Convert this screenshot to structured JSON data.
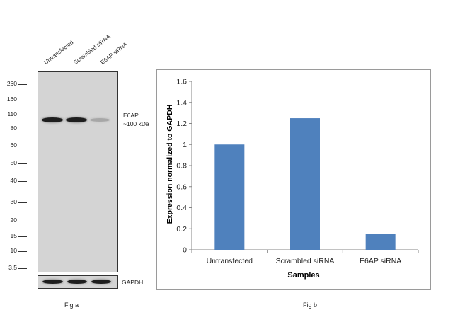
{
  "fig_a": {
    "lanes": [
      "Untransfected",
      "Scrambled siRNA",
      "E6AP siRNA"
    ],
    "markers": [
      "260",
      "160",
      "110",
      "80",
      "60",
      "50",
      "40",
      "30",
      "20",
      "15",
      "10",
      "3.5"
    ],
    "target_label": "E6AP",
    "target_size": "~100 kDa",
    "loading_label": "GAPDH",
    "caption": "Fig a",
    "band_intensities": [
      1.0,
      1.0,
      0.25
    ],
    "loading_intensities": [
      1.0,
      1.0,
      1.0
    ]
  },
  "fig_b": {
    "caption": "Fig b"
  },
  "colors": {
    "bar": "#4f81bd",
    "blot_background": "#d4d4d4",
    "band": "#1e1e1e"
  },
  "chart_data": {
    "type": "bar",
    "categories": [
      "Untransfected",
      "Scrambled siRNA",
      "E6AP siRNA"
    ],
    "values": [
      1.0,
      1.25,
      0.15
    ],
    "title": "",
    "xlabel": "Samples",
    "ylabel": "Expression normalized to GAPDH",
    "ylim": [
      0,
      1.6
    ],
    "yticks": [
      "0",
      "0.2",
      "0.4",
      "0.6",
      "0.8",
      "1",
      "1.2",
      "1.4",
      "1.6"
    ],
    "grid": false,
    "legend": "none"
  }
}
